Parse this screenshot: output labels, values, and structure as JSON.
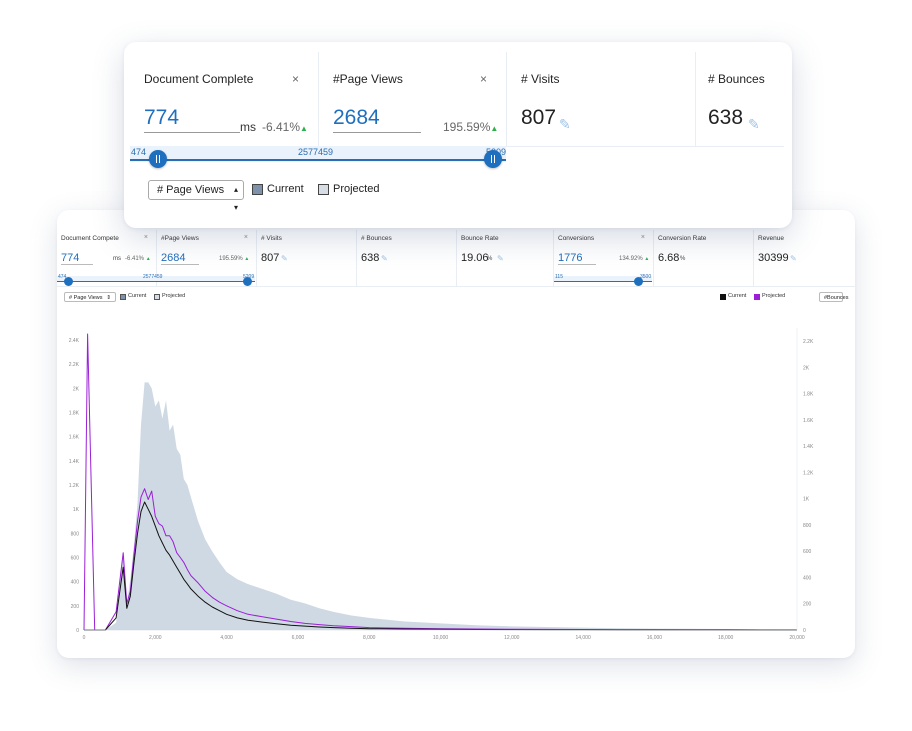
{
  "dashboard": {
    "metrics": [
      {
        "label": "Document Compete",
        "value": "774",
        "unit": "ms",
        "change": "-6.41%",
        "closable": true
      },
      {
        "label": "#Page Views",
        "value": "2684",
        "unit": "",
        "change": "195.59%",
        "closable": true
      },
      {
        "label": "# Visits",
        "value": "807"
      },
      {
        "label": "# Bounces",
        "value": "638"
      },
      {
        "label": "Bounce Rate",
        "value": "19.06",
        "unit": "%"
      },
      {
        "label": "Conversions",
        "value": "1776",
        "change": "134.92%",
        "closable": true
      },
      {
        "label": "Conversion Rate",
        "value": "6.68",
        "unit": "%"
      },
      {
        "label": "Revenue",
        "value": "30399"
      }
    ],
    "slider1": {
      "min": "474",
      "center": "2577459",
      "max": "5209"
    },
    "slider2": {
      "min": "115",
      "max": "3500"
    },
    "toolbar": {
      "select_value": "# Page Views",
      "current_label": "Current",
      "projected_label": "Projected",
      "right_current_label": "Current",
      "right_projected_label": "Projected",
      "right_select_value": "#Bounces"
    }
  },
  "zoom": {
    "metrics": [
      {
        "label": "Document Complete",
        "value": "774",
        "unit": "ms",
        "change": "-6.41%",
        "close": "×"
      },
      {
        "label": "#Page Views",
        "value": "2684",
        "change": "195.59%",
        "close": "×"
      },
      {
        "label": "# Visits",
        "value": "807"
      },
      {
        "label": "# Bounces",
        "value": "638"
      }
    ],
    "slider": {
      "min": "474",
      "center": "2577459",
      "max": "5209"
    },
    "select_value": "# Page Views",
    "current_label": "Current",
    "projected_label": "Projected"
  },
  "colors": {
    "accent": "#1f6fbf",
    "projected_line": "#9b1fd6",
    "current_line": "#111111",
    "area_fill": "#c5d2de",
    "up_arrow": "#2db04b"
  },
  "chart_data": {
    "type": "area",
    "x_ticks": [
      "0",
      "2,000",
      "4,000",
      "6,000",
      "8,000",
      "10,000",
      "12,000",
      "14,000",
      "16,000",
      "18,000",
      "20,000"
    ],
    "y_left_ticks": [
      "0",
      "200",
      "400",
      "600",
      "800",
      "1K",
      "1.2K",
      "1.4K",
      "1.6K",
      "1.8K",
      "2K",
      "2.2K",
      "2.4K"
    ],
    "y_right_ticks": [
      "0",
      "200",
      "400",
      "600",
      "800",
      "1K",
      "1.2K",
      "1.4K",
      "1.6K",
      "1.8K",
      "2K",
      "2.2K"
    ],
    "xlim": [
      0,
      20000
    ],
    "ylim_left": [
      0,
      2500
    ],
    "ylim_right": [
      0,
      2300
    ],
    "x": [
      0,
      100,
      300,
      600,
      900,
      1100,
      1200,
      1300,
      1400,
      1500,
      1600,
      1700,
      1800,
      1900,
      2000,
      2100,
      2200,
      2300,
      2400,
      2500,
      2600,
      2700,
      2800,
      2900,
      3000,
      3200,
      3400,
      3600,
      3800,
      4000,
      4300,
      4600,
      5000,
      5400,
      5800,
      6200,
      6600,
      7000,
      7500,
      8000,
      9000,
      10000,
      11000,
      12000,
      13000,
      14000,
      15000,
      16000,
      17000,
      18000,
      19000,
      20000
    ],
    "series": [
      {
        "name": "Projected",
        "role": "area",
        "values": [
          0,
          0,
          0,
          0,
          60,
          650,
          220,
          420,
          700,
          1050,
          1700,
          2050,
          2050,
          2000,
          1850,
          1900,
          1750,
          1900,
          1650,
          1700,
          1500,
          1450,
          1250,
          1200,
          1100,
          900,
          750,
          650,
          560,
          480,
          420,
          380,
          340,
          300,
          250,
          220,
          180,
          150,
          120,
          100,
          70,
          55,
          40,
          30,
          25,
          20,
          15,
          12,
          10,
          8,
          6,
          5
        ]
      },
      {
        "name": "Projected",
        "role": "line",
        "values": [
          0,
          2450,
          0,
          0,
          150,
          640,
          220,
          320,
          620,
          900,
          1100,
          1170,
          1080,
          1150,
          940,
          880,
          860,
          780,
          780,
          730,
          640,
          600,
          560,
          500,
          450,
          390,
          320,
          270,
          230,
          200,
          160,
          130,
          110,
          90,
          70,
          55,
          45,
          35,
          28,
          20,
          14,
          10,
          8,
          6,
          5,
          4,
          3,
          3,
          2,
          2,
          1,
          1
        ]
      },
      {
        "name": "Current",
        "role": "line",
        "values": [
          0,
          0,
          0,
          0,
          100,
          520,
          180,
          280,
          550,
          800,
          980,
          1060,
          1000,
          940,
          860,
          780,
          720,
          660,
          620,
          570,
          520,
          470,
          420,
          380,
          340,
          280,
          230,
          190,
          160,
          130,
          100,
          80,
          65,
          52,
          40,
          32,
          25,
          20,
          15,
          11,
          8,
          6,
          4,
          3,
          2,
          2,
          1,
          1,
          1,
          1,
          0,
          0
        ]
      }
    ]
  }
}
